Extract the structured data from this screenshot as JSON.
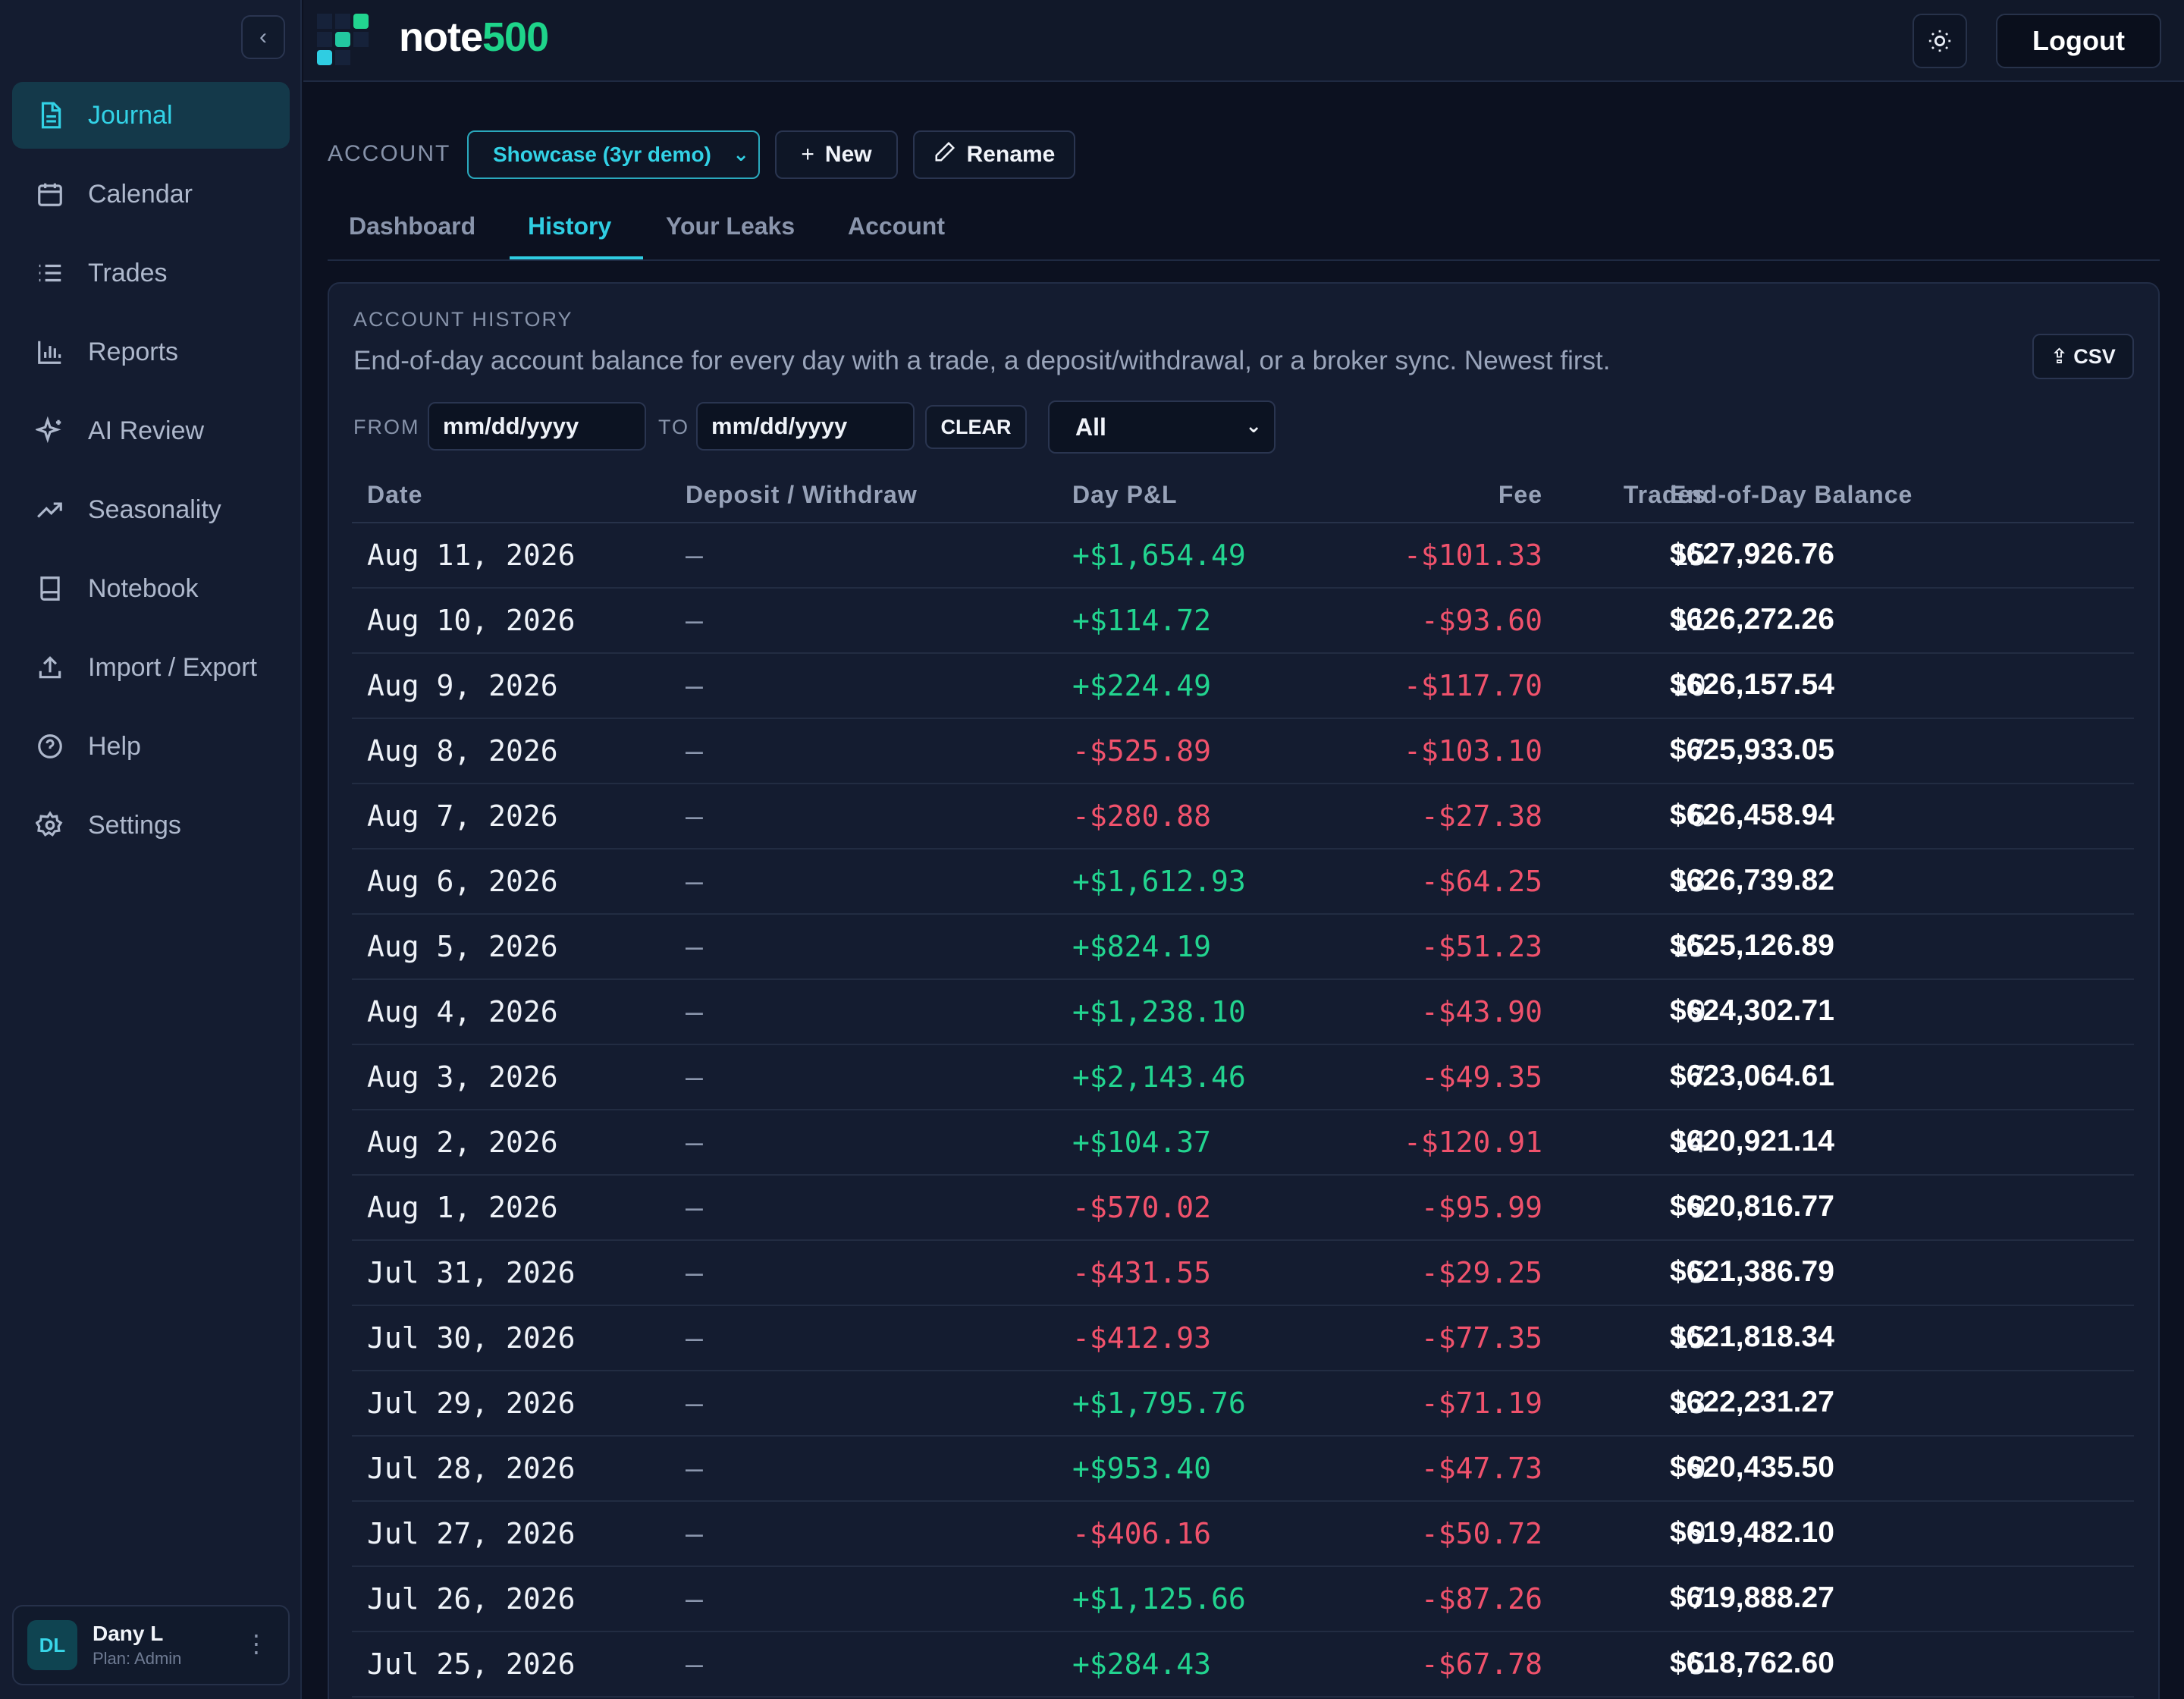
{
  "app": {
    "brand_part1": "note",
    "brand_part2": "500",
    "logout_label": "Logout"
  },
  "sidebar": {
    "items": [
      {
        "label": "Journal",
        "icon": "document-icon",
        "active": true
      },
      {
        "label": "Calendar",
        "icon": "calendar-icon",
        "active": false
      },
      {
        "label": "Trades",
        "icon": "list-icon",
        "active": false
      },
      {
        "label": "Reports",
        "icon": "bar-chart-icon",
        "active": false
      },
      {
        "label": "AI Review",
        "icon": "sparkle-icon",
        "active": false
      },
      {
        "label": "Seasonality",
        "icon": "trending-up-icon",
        "active": false
      },
      {
        "label": "Notebook",
        "icon": "book-icon",
        "active": false
      },
      {
        "label": "Import / Export",
        "icon": "upload-icon",
        "active": false
      },
      {
        "label": "Help",
        "icon": "help-circle-icon",
        "active": false
      },
      {
        "label": "Settings",
        "icon": "gear-icon",
        "active": false
      }
    ],
    "user": {
      "initials": "DL",
      "name": "Dany L",
      "plan": "Plan: Admin"
    }
  },
  "account_bar": {
    "label": "ACCOUNT",
    "selected": "Showcase (3yr demo)",
    "new_label": "New",
    "rename_label": "Rename"
  },
  "tabs": [
    "Dashboard",
    "History",
    "Your Leaks",
    "Account"
  ],
  "active_tab": "History",
  "panel": {
    "title": "ACCOUNT HISTORY",
    "description": "End-of-day account balance for every day with a trade, a deposit/withdrawal, or a broker sync. Newest first.",
    "csv_label": "⇪ CSV",
    "from_label": "FROM",
    "to_label": "TO",
    "from_placeholder": "mm/dd/yyyy",
    "to_placeholder": "mm/dd/yyyy",
    "clear_label": "CLEAR",
    "filter_selected": "All"
  },
  "table": {
    "headers": [
      "Date",
      "Deposit / Withdraw",
      "Day P&L",
      "Fee",
      "Trades",
      "End-of-Day Balance"
    ],
    "rows": [
      {
        "date": "Aug 11, 2026",
        "dep": "—",
        "pnl": "+$1,654.49",
        "fee": "-$101.33",
        "trades": "15",
        "bal": "$627,926.76"
      },
      {
        "date": "Aug 10, 2026",
        "dep": "—",
        "pnl": "+$114.72",
        "fee": "-$93.60",
        "trades": "11",
        "bal": "$626,272.26"
      },
      {
        "date": "Aug 9, 2026",
        "dep": "—",
        "pnl": "+$224.49",
        "fee": "-$117.70",
        "trades": "10",
        "bal": "$626,157.54"
      },
      {
        "date": "Aug 8, 2026",
        "dep": "—",
        "pnl": "-$525.89",
        "fee": "-$103.10",
        "trades": "7",
        "bal": "$625,933.05"
      },
      {
        "date": "Aug 7, 2026",
        "dep": "—",
        "pnl": "-$280.88",
        "fee": "-$27.38",
        "trades": "6",
        "bal": "$626,458.94"
      },
      {
        "date": "Aug 6, 2026",
        "dep": "—",
        "pnl": "+$1,612.93",
        "fee": "-$64.25",
        "trades": "13",
        "bal": "$626,739.82"
      },
      {
        "date": "Aug 5, 2026",
        "dep": "—",
        "pnl": "+$824.19",
        "fee": "-$51.23",
        "trades": "15",
        "bal": "$625,126.89"
      },
      {
        "date": "Aug 4, 2026",
        "dep": "—",
        "pnl": "+$1,238.10",
        "fee": "-$43.90",
        "trades": "9",
        "bal": "$624,302.71"
      },
      {
        "date": "Aug 3, 2026",
        "dep": "—",
        "pnl": "+$2,143.46",
        "fee": "-$49.35",
        "trades": "7",
        "bal": "$623,064.61"
      },
      {
        "date": "Aug 2, 2026",
        "dep": "—",
        "pnl": "+$104.37",
        "fee": "-$120.91",
        "trades": "14",
        "bal": "$620,921.14"
      },
      {
        "date": "Aug 1, 2026",
        "dep": "—",
        "pnl": "-$570.02",
        "fee": "-$95.99",
        "trades": "9",
        "bal": "$620,816.77"
      },
      {
        "date": "Jul 31, 2026",
        "dep": "—",
        "pnl": "-$431.55",
        "fee": "-$29.25",
        "trades": "5",
        "bal": "$621,386.79"
      },
      {
        "date": "Jul 30, 2026",
        "dep": "—",
        "pnl": "-$412.93",
        "fee": "-$77.35",
        "trades": "15",
        "bal": "$621,818.34"
      },
      {
        "date": "Jul 29, 2026",
        "dep": "—",
        "pnl": "+$1,795.76",
        "fee": "-$71.19",
        "trades": "13",
        "bal": "$622,231.27"
      },
      {
        "date": "Jul 28, 2026",
        "dep": "—",
        "pnl": "+$953.40",
        "fee": "-$47.73",
        "trades": "9",
        "bal": "$620,435.50"
      },
      {
        "date": "Jul 27, 2026",
        "dep": "—",
        "pnl": "-$406.16",
        "fee": "-$50.72",
        "trades": "9",
        "bal": "$619,482.10"
      },
      {
        "date": "Jul 26, 2026",
        "dep": "—",
        "pnl": "+$1,125.66",
        "fee": "-$87.26",
        "trades": "7",
        "bal": "$619,888.27"
      },
      {
        "date": "Jul 25, 2026",
        "dep": "—",
        "pnl": "+$284.43",
        "fee": "-$67.78",
        "trades": "5",
        "bal": "$618,762.60"
      }
    ]
  },
  "colors": {
    "accent": "#2fcde2",
    "positive": "#22d48f",
    "negative": "#f0526c",
    "brand_green": "#1ed48a"
  }
}
